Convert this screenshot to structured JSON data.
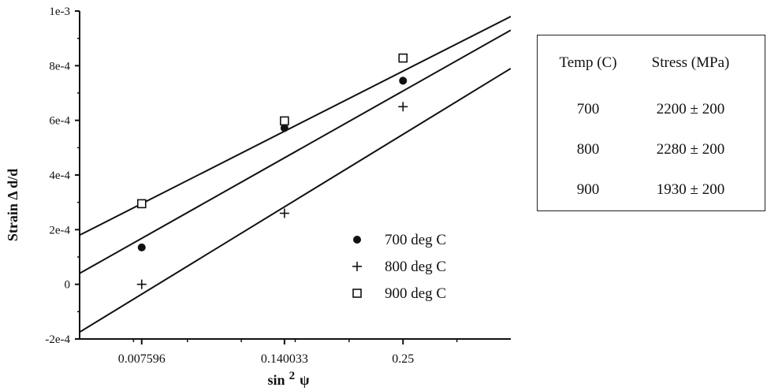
{
  "chart_data": {
    "type": "scatter",
    "title": "",
    "xlabel": "sin",
    "xlabel_sup": "2",
    "xlabel_symbol": "ψ",
    "ylabel": "Strain  Δ d/d",
    "xlim": [
      -0.05,
      0.35
    ],
    "ylim": [
      -0.0002,
      0.001
    ],
    "x_ticks": [
      0.007596,
      0.140033,
      0.25
    ],
    "x_tick_labels": [
      "0.007596",
      "0.140033",
      "0.25"
    ],
    "y_ticks": [
      -0.0002,
      0,
      0.0002,
      0.0004,
      0.0006,
      0.0008,
      0.001
    ],
    "y_tick_labels": [
      "-2e-4",
      "0",
      "2e-4",
      "4e-4",
      "6e-4",
      "8e-4",
      "1e-3"
    ],
    "grid": false,
    "legend_position": "bottom-right",
    "series": [
      {
        "name": "700 deg C",
        "marker": "filled-circle",
        "x": [
          0.007596,
          0.140033,
          0.25
        ],
        "y": [
          0.000135,
          0.000572,
          0.000745
        ],
        "fit_line": {
          "x": [
            -0.05,
            0.35
          ],
          "y": [
            4e-05,
            0.00093
          ]
        }
      },
      {
        "name": "800 deg C",
        "marker": "plus",
        "x": [
          0.007596,
          0.140033,
          0.25
        ],
        "y": [
          0.0,
          0.00026,
          0.00065
        ],
        "fit_line": {
          "x": [
            -0.05,
            0.35
          ],
          "y": [
            -0.000175,
            0.00079
          ]
        }
      },
      {
        "name": "900 deg C",
        "marker": "open-square",
        "x": [
          0.007596,
          0.140033,
          0.25
        ],
        "y": [
          0.000295,
          0.000598,
          0.000828
        ],
        "fit_line": {
          "x": [
            -0.05,
            0.35
          ],
          "y": [
            0.00018,
            0.00098
          ]
        }
      }
    ]
  },
  "results_table": {
    "headers": [
      "Temp (C)",
      "Stress (MPa)"
    ],
    "rows": [
      {
        "temp": "700",
        "stress": "2200 ± 200"
      },
      {
        "temp": "800",
        "stress": "2280 ± 200"
      },
      {
        "temp": "900",
        "stress": "1930 ± 200"
      }
    ]
  }
}
